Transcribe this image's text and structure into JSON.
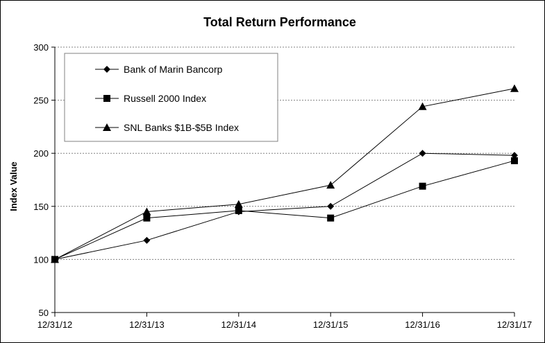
{
  "chart_data": {
    "type": "line",
    "title": "Total Return Performance",
    "xlabel": "",
    "ylabel": "Index Value",
    "categories": [
      "12/31/12",
      "12/31/13",
      "12/31/14",
      "12/31/15",
      "12/31/16",
      "12/31/17"
    ],
    "ylim": [
      50,
      300
    ],
    "yticks": [
      50,
      100,
      150,
      200,
      250,
      300
    ],
    "grid": true,
    "legend_position": "top-left",
    "series": [
      {
        "name": "Bank of Marin Bancorp",
        "marker": "diamond",
        "values": [
          100,
          118,
          145,
          150,
          200,
          198
        ],
        "color": "#000000"
      },
      {
        "name": "Russell 2000 Index",
        "marker": "square",
        "values": [
          100,
          139,
          146,
          139,
          169,
          193
        ],
        "color": "#000000"
      },
      {
        "name": "SNL Banks $1B-$5B Index",
        "marker": "triangle",
        "values": [
          100,
          145,
          152,
          170,
          244,
          261
        ],
        "color": "#000000"
      }
    ]
  }
}
